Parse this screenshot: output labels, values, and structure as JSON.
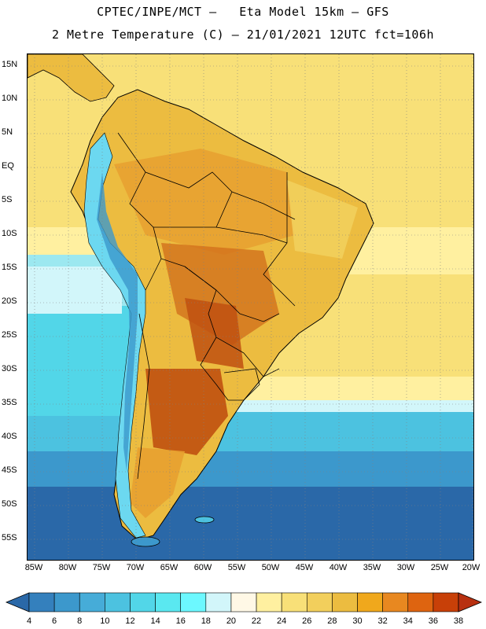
{
  "title_line1": "CPTEC/INPE/MCT –   Eta Model 15km – GFS",
  "title_line2": "2 Metre Temperature (C) – 21/01/2021 12UTC fct=106h",
  "lat_labels": [
    "15N",
    "10N",
    "5N",
    "EQ",
    "5S",
    "10S",
    "15S",
    "20S",
    "25S",
    "30S",
    "35S",
    "40S",
    "45S",
    "50S",
    "55S"
  ],
  "lon_labels": [
    "85W",
    "80W",
    "75W",
    "70W",
    "65W",
    "60W",
    "55W",
    "50W",
    "45W",
    "40W",
    "35W",
    "30W",
    "25W",
    "20W"
  ],
  "colorbar": {
    "levels": [
      "4",
      "6",
      "8",
      "10",
      "12",
      "14",
      "16",
      "18",
      "20",
      "22",
      "24",
      "26",
      "28",
      "30",
      "32",
      "34",
      "36",
      "38"
    ],
    "colors": [
      "#2a68a8",
      "#3480bd",
      "#3c98cc",
      "#46acd8",
      "#4cc2e0",
      "#52d6e8",
      "#5ae8f0",
      "#6cf8ff",
      "#d2f6fa",
      "#fff8e6",
      "#fff0a0",
      "#f8e078",
      "#f2cf5c",
      "#ecbc40",
      "#f0a81c",
      "#e88820",
      "#de6410",
      "#c84008",
      "#b83010"
    ]
  },
  "map": {
    "colors": {
      "ocean_deep": "#2a68a8",
      "ocean_mid": "#3c98cc",
      "ocean_cyan": "#4cc2e0",
      "ocean_light": "#9ce8f0",
      "pale": "#fff8e6",
      "warm_yellow": "#f8e078",
      "land_base": "#ecbc40",
      "land_orange": "#e8a030",
      "hot": "#d2701c",
      "very_hot": "#c05010",
      "andes": "#6cd8f0"
    }
  }
}
